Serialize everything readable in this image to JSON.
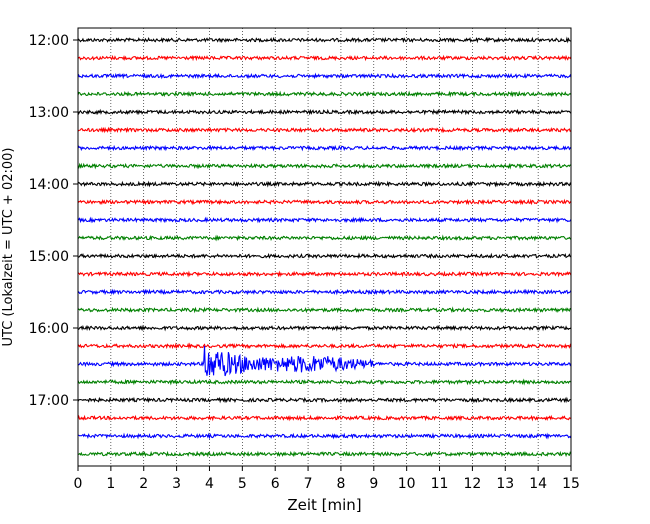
{
  "chart_data": {
    "type": "line",
    "title": "",
    "xlabel": "Zeit  [min]",
    "ylabel": "UTC (Lokalzeit = UTC + 02:00)",
    "xlim": [
      0,
      15
    ],
    "x_ticks": [
      "0",
      "1",
      "2",
      "3",
      "4",
      "5",
      "6",
      "7",
      "8",
      "9",
      "10",
      "11",
      "12",
      "13",
      "14",
      "15"
    ],
    "y_ticks": [
      "12:00",
      "13:00",
      "14:00",
      "15:00",
      "16:00",
      "17:00"
    ],
    "grid": "vertical dotted at each minute",
    "trace_interval_minutes": 15,
    "trace_colors": [
      "#000000",
      "#ff0000",
      "#0000ff",
      "#008000"
    ],
    "traces": [
      {
        "start": "12:00",
        "color": "#000000"
      },
      {
        "start": "12:15",
        "color": "#ff0000"
      },
      {
        "start": "12:30",
        "color": "#0000ff"
      },
      {
        "start": "12:45",
        "color": "#008000"
      },
      {
        "start": "13:00",
        "color": "#000000"
      },
      {
        "start": "13:15",
        "color": "#ff0000"
      },
      {
        "start": "13:30",
        "color": "#0000ff"
      },
      {
        "start": "13:45",
        "color": "#008000"
      },
      {
        "start": "14:00",
        "color": "#000000"
      },
      {
        "start": "14:15",
        "color": "#ff0000"
      },
      {
        "start": "14:30",
        "color": "#0000ff"
      },
      {
        "start": "14:45",
        "color": "#008000"
      },
      {
        "start": "15:00",
        "color": "#000000"
      },
      {
        "start": "15:15",
        "color": "#ff0000"
      },
      {
        "start": "15:30",
        "color": "#0000ff"
      },
      {
        "start": "15:45",
        "color": "#008000"
      },
      {
        "start": "16:00",
        "color": "#000000"
      },
      {
        "start": "16:15",
        "color": "#ff0000"
      },
      {
        "start": "16:30",
        "color": "#0000ff",
        "event": {
          "onset_min": 3.85,
          "peak_amplitude": 1.0,
          "end_min": 9.0
        }
      },
      {
        "start": "16:45",
        "color": "#008000"
      },
      {
        "start": "17:00",
        "color": "#000000"
      },
      {
        "start": "17:15",
        "color": "#ff0000"
      },
      {
        "start": "17:30",
        "color": "#0000ff"
      },
      {
        "start": "17:45",
        "color": "#008000"
      }
    ]
  }
}
